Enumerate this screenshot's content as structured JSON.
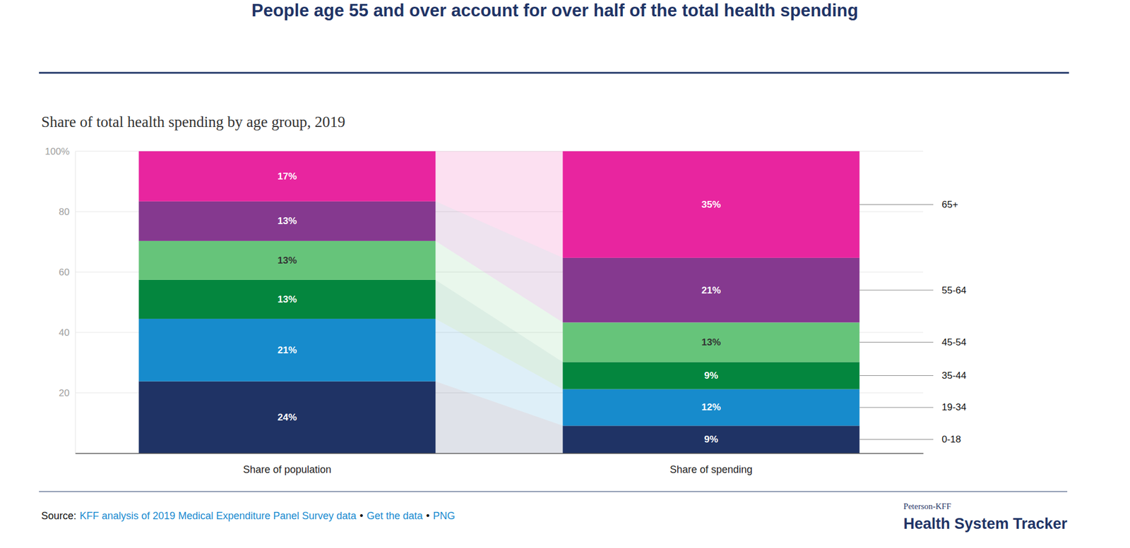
{
  "chart_data": {
    "type": "bar",
    "stacked": true,
    "grid": true,
    "data_labels": true,
    "title": "People age 55 and over account for over half of the total health spending",
    "subtitle": "Share of total health spending by age group, 2019",
    "categories": [
      "Share of population",
      "Share of spending"
    ],
    "series": [
      {
        "name": "0-18",
        "color": "#1f3365",
        "values": [
          23.8,
          9.1
        ],
        "value_labels": [
          "24%",
          "9%"
        ]
      },
      {
        "name": "19-34",
        "color": "#178bcc",
        "values": [
          20.7,
          12.1
        ],
        "value_labels": [
          "21%",
          "12%"
        ]
      },
      {
        "name": "35-44",
        "color": "#04863e",
        "values": [
          12.9,
          9.0
        ],
        "value_labels": [
          "13%",
          "9%"
        ]
      },
      {
        "name": "45-54",
        "color": "#66c47a",
        "values": [
          12.9,
          13.1
        ],
        "value_labels": [
          "13%",
          "13%"
        ]
      },
      {
        "name": "55-64",
        "color": "#85398f",
        "values": [
          13.1,
          21.4
        ],
        "value_labels": [
          "13%",
          "21%"
        ]
      },
      {
        "name": "65+",
        "color": "#e8259f",
        "values": [
          16.6,
          35.3
        ],
        "value_labels": [
          "17%",
          "35%"
        ]
      }
    ],
    "ylim": [
      0,
      100
    ],
    "yticks": [
      20,
      40,
      60,
      80,
      {
        "value": 100,
        "label": "100%"
      }
    ],
    "source": "Source:",
    "source_links": [
      "KFF analysis of 2019 Medical Expenditure Panel Survey data",
      "Get the data",
      "PNG"
    ],
    "source_separator": "•",
    "logo": {
      "small": "Peterson-KFF",
      "large": "Health System Tracker"
    }
  }
}
